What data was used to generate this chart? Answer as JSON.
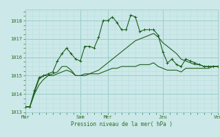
{
  "background_color": "#cce8e8",
  "grid_color_major": "#99cccc",
  "grid_color_minor": "#b8dede",
  "line_color": "#1a5c1a",
  "marker_color": "#1a5c1a",
  "tick_color": "#2a6e2a",
  "xlabel": "Pression niveau de la mer( hPa )",
  "ylim": [
    1013.0,
    1018.6
  ],
  "yticks": [
    1013,
    1014,
    1015,
    1016,
    1017,
    1018
  ],
  "day_labels": [
    "Mar",
    "Sam",
    "Mer",
    "Jeu",
    "Ven"
  ],
  "day_positions": [
    0,
    48,
    72,
    120,
    168
  ],
  "series1_x": [
    0,
    4,
    8,
    12,
    16,
    20,
    24,
    28,
    32,
    36,
    40,
    44,
    48,
    52,
    56,
    60,
    64,
    68,
    72,
    76,
    80,
    84,
    88,
    92,
    96,
    100,
    104,
    108,
    112,
    116,
    120,
    124,
    128,
    132,
    136,
    140,
    144,
    148,
    152,
    156,
    160,
    164,
    168
  ],
  "series1_y": [
    1013.3,
    1013.3,
    1014.2,
    1014.9,
    1015.0,
    1015.1,
    1015.2,
    1015.8,
    1016.2,
    1016.5,
    1016.2,
    1015.9,
    1015.8,
    1016.6,
    1016.6,
    1016.5,
    1017.1,
    1018.0,
    1018.0,
    1018.2,
    1017.9,
    1017.5,
    1017.5,
    1018.3,
    1018.2,
    1017.4,
    1017.5,
    1017.5,
    1017.5,
    1017.2,
    1016.3,
    1015.7,
    1015.9,
    1015.6,
    1015.5,
    1015.9,
    1015.8,
    1015.7,
    1015.6,
    1015.5,
    1015.5,
    1015.5,
    1015.5
  ],
  "series2_x": [
    0,
    4,
    8,
    12,
    16,
    20,
    24,
    28,
    32,
    36,
    40,
    44,
    48,
    52,
    56,
    60,
    64,
    68,
    72,
    76,
    80,
    84,
    88,
    92,
    96,
    100,
    104,
    108,
    112,
    116,
    120,
    124,
    128,
    132,
    136,
    140,
    144,
    148,
    152,
    156,
    160,
    164,
    168
  ],
  "series2_y": [
    1013.3,
    1013.3,
    1014.1,
    1014.8,
    1015.0,
    1015.0,
    1015.1,
    1015.2,
    1015.5,
    1015.5,
    1015.3,
    1015.0,
    1015.0,
    1015.1,
    1015.1,
    1015.1,
    1015.1,
    1015.2,
    1015.3,
    1015.4,
    1015.4,
    1015.5,
    1015.5,
    1015.5,
    1015.5,
    1015.6,
    1015.6,
    1015.6,
    1015.7,
    1015.5,
    1015.4,
    1015.3,
    1015.3,
    1015.3,
    1015.2,
    1015.4,
    1015.4,
    1015.4,
    1015.4,
    1015.4,
    1015.4,
    1015.5,
    1015.5
  ],
  "series3_x": [
    0,
    4,
    8,
    12,
    16,
    20,
    24,
    28,
    32,
    36,
    40,
    44,
    48,
    52,
    56,
    60,
    64,
    68,
    72,
    76,
    80,
    84,
    88,
    92,
    96,
    100,
    104,
    108,
    112,
    116,
    120,
    124,
    128,
    132,
    136,
    140,
    144,
    148,
    152,
    156,
    160,
    164,
    168
  ],
  "series3_y": [
    1013.3,
    1013.3,
    1014.0,
    1014.5,
    1014.8,
    1015.0,
    1015.0,
    1015.1,
    1015.2,
    1015.3,
    1015.2,
    1015.0,
    1015.0,
    1015.0,
    1015.1,
    1015.2,
    1015.3,
    1015.5,
    1015.7,
    1015.9,
    1016.1,
    1016.3,
    1016.5,
    1016.7,
    1016.9,
    1017.0,
    1017.1,
    1017.2,
    1017.3,
    1017.1,
    1016.8,
    1016.6,
    1016.4,
    1016.2,
    1015.9,
    1015.8,
    1015.7,
    1015.6,
    1015.6,
    1015.5,
    1015.5,
    1015.5,
    1015.5
  ]
}
